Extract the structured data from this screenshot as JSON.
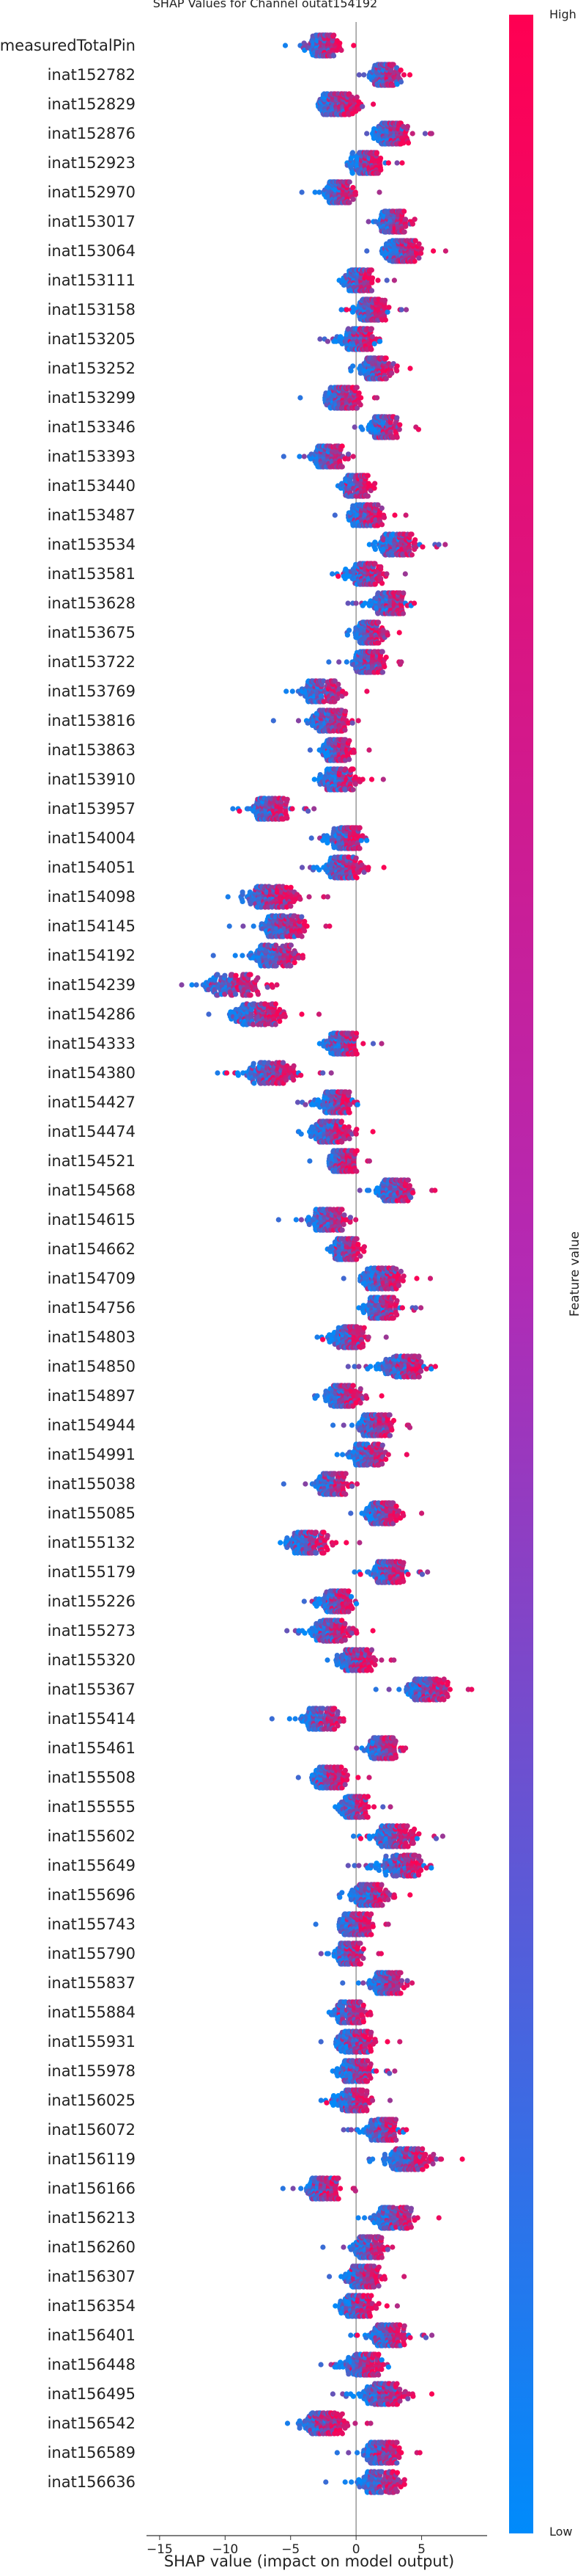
{
  "chart_data": {
    "type": "scatter",
    "subtype": "shap-beeswarm",
    "title": "SHAP Values for Channel outat154192",
    "xlabel": "SHAP value (impact on model output)",
    "xlim": [
      -16,
      10
    ],
    "xticks": [
      -15,
      -10,
      -5,
      0,
      5
    ],
    "xtick_labels": [
      "−15",
      "−10",
      "−5",
      "0",
      "5"
    ],
    "colorbar": {
      "label": "Feature value",
      "high_label": "High",
      "low_label": "Low",
      "high_color": "#ff0052",
      "low_color": "#008bfb"
    },
    "features": [
      {
        "name": "measuredTotalPin",
        "center": -2.5,
        "spread": 1.6,
        "corr": 1
      },
      {
        "name": "inat152782",
        "center": 2.2,
        "spread": 1.5,
        "corr": 1
      },
      {
        "name": "inat152829",
        "center": -1.5,
        "spread": 2.0,
        "corr": 1
      },
      {
        "name": "inat152876",
        "center": 2.8,
        "spread": 1.8,
        "corr": 1
      },
      {
        "name": "inat152923",
        "center": 0.8,
        "spread": 1.5,
        "corr": 1
      },
      {
        "name": "inat152970",
        "center": -1.2,
        "spread": 1.5,
        "corr": 1
      },
      {
        "name": "inat153017",
        "center": 2.8,
        "spread": 1.7,
        "corr": 1
      },
      {
        "name": "inat153064",
        "center": 3.5,
        "spread": 2.0,
        "corr": 1
      },
      {
        "name": "inat153111",
        "center": 0.3,
        "spread": 1.6,
        "corr": 1
      },
      {
        "name": "inat153158",
        "center": 1.2,
        "spread": 1.6,
        "corr": 1
      },
      {
        "name": "inat153205",
        "center": 0.2,
        "spread": 1.8,
        "corr": 1
      },
      {
        "name": "inat153252",
        "center": 1.5,
        "spread": 1.6,
        "corr": 1
      },
      {
        "name": "inat153299",
        "center": -1.0,
        "spread": 1.8,
        "corr": 1
      },
      {
        "name": "inat153346",
        "center": 2.2,
        "spread": 1.7,
        "corr": 1
      },
      {
        "name": "inat153393",
        "center": -2.0,
        "spread": 1.8,
        "corr": 1
      },
      {
        "name": "inat153440",
        "center": 0.0,
        "spread": 1.6,
        "corr": 1
      },
      {
        "name": "inat153487",
        "center": 0.8,
        "spread": 1.8,
        "corr": 1
      },
      {
        "name": "inat153534",
        "center": 3.2,
        "spread": 2.2,
        "corr": 1
      },
      {
        "name": "inat153581",
        "center": 0.8,
        "spread": 1.8,
        "corr": 1
      },
      {
        "name": "inat153628",
        "center": 2.5,
        "spread": 1.9,
        "corr": 1
      },
      {
        "name": "inat153675",
        "center": 1.0,
        "spread": 1.4,
        "corr": 1
      },
      {
        "name": "inat153722",
        "center": 1.0,
        "spread": 1.7,
        "corr": 1
      },
      {
        "name": "inat153769",
        "center": -2.5,
        "spread": 2.2,
        "corr": 1
      },
      {
        "name": "inat153816",
        "center": -2.0,
        "spread": 2.2,
        "corr": 1
      },
      {
        "name": "inat153863",
        "center": -1.5,
        "spread": 1.5,
        "corr": 1
      },
      {
        "name": "inat153910",
        "center": -1.2,
        "spread": 2.0,
        "corr": 1
      },
      {
        "name": "inat153957",
        "center": -6.5,
        "spread": 2.0,
        "corr": 1
      },
      {
        "name": "inat154004",
        "center": -0.8,
        "spread": 1.8,
        "corr": 1
      },
      {
        "name": "inat154051",
        "center": -1.0,
        "spread": 1.9,
        "corr": 1
      },
      {
        "name": "inat154098",
        "center": -6.5,
        "spread": 3.0,
        "corr": 1
      },
      {
        "name": "inat154145",
        "center": -5.5,
        "spread": 2.3,
        "corr": 1
      },
      {
        "name": "inat154192",
        "center": -6.0,
        "spread": 2.5,
        "corr": 1
      },
      {
        "name": "inat154239",
        "center": -9.5,
        "spread": 3.5,
        "corr": 1
      },
      {
        "name": "inat154286",
        "center": -7.5,
        "spread": 2.8,
        "corr": 1
      },
      {
        "name": "inat154333",
        "center": -1.0,
        "spread": 1.8,
        "corr": 1
      },
      {
        "name": "inat154380",
        "center": -6.5,
        "spread": 2.8,
        "corr": 1
      },
      {
        "name": "inat154427",
        "center": -1.5,
        "spread": 1.8,
        "corr": 1
      },
      {
        "name": "inat154474",
        "center": -2.0,
        "spread": 2.0,
        "corr": 1
      },
      {
        "name": "inat154521",
        "center": -1.0,
        "spread": 1.4,
        "corr": 1
      },
      {
        "name": "inat154568",
        "center": 3.0,
        "spread": 2.0,
        "corr": 1
      },
      {
        "name": "inat154615",
        "center": -2.0,
        "spread": 2.0,
        "corr": 1
      },
      {
        "name": "inat154662",
        "center": -0.8,
        "spread": 1.6,
        "corr": 1
      },
      {
        "name": "inat154709",
        "center": 2.0,
        "spread": 2.2,
        "corr": 1
      },
      {
        "name": "inat154756",
        "center": 2.0,
        "spread": 1.8,
        "corr": 1
      },
      {
        "name": "inat154803",
        "center": -0.5,
        "spread": 1.7,
        "corr": 1
      },
      {
        "name": "inat154850",
        "center": 3.5,
        "spread": 2.5,
        "corr": 1
      },
      {
        "name": "inat154897",
        "center": -1.0,
        "spread": 1.8,
        "corr": 1
      },
      {
        "name": "inat154944",
        "center": 1.5,
        "spread": 1.8,
        "corr": 1
      },
      {
        "name": "inat154991",
        "center": 1.0,
        "spread": 1.9,
        "corr": 1
      },
      {
        "name": "inat155038",
        "center": -1.8,
        "spread": 1.9,
        "corr": 1
      },
      {
        "name": "inat155085",
        "center": 2.0,
        "spread": 1.8,
        "corr": 1
      },
      {
        "name": "inat155132",
        "center": -3.5,
        "spread": 2.3,
        "corr": 1
      },
      {
        "name": "inat155179",
        "center": 2.5,
        "spread": 1.8,
        "corr": 1
      },
      {
        "name": "inat155226",
        "center": -1.5,
        "spread": 1.7,
        "corr": 1
      },
      {
        "name": "inat155273",
        "center": -2.0,
        "spread": 2.0,
        "corr": 1
      },
      {
        "name": "inat155320",
        "center": 0.0,
        "spread": 2.0,
        "corr": 1
      },
      {
        "name": "inat155367",
        "center": 5.5,
        "spread": 2.2,
        "corr": 1
      },
      {
        "name": "inat155414",
        "center": -2.5,
        "spread": 2.0,
        "corr": 1
      },
      {
        "name": "inat155461",
        "center": 2.0,
        "spread": 1.8,
        "corr": 1
      },
      {
        "name": "inat155508",
        "center": -2.0,
        "spread": 1.8,
        "corr": 1
      },
      {
        "name": "inat155555",
        "center": 0.0,
        "spread": 1.6,
        "corr": 1
      },
      {
        "name": "inat155602",
        "center": 3.0,
        "spread": 2.2,
        "corr": 1
      },
      {
        "name": "inat155649",
        "center": 3.5,
        "spread": 2.5,
        "corr": 1
      },
      {
        "name": "inat155696",
        "center": 1.0,
        "spread": 1.9,
        "corr": 1
      },
      {
        "name": "inat155743",
        "center": 0.0,
        "spread": 1.7,
        "corr": 1
      },
      {
        "name": "inat155790",
        "center": -0.5,
        "spread": 1.6,
        "corr": 1
      },
      {
        "name": "inat155837",
        "center": 2.5,
        "spread": 1.8,
        "corr": 1
      },
      {
        "name": "inat155884",
        "center": -0.5,
        "spread": 1.8,
        "corr": 1
      },
      {
        "name": "inat155931",
        "center": 0.0,
        "spread": 2.0,
        "corr": 1
      },
      {
        "name": "inat155978",
        "center": 0.0,
        "spread": 1.8,
        "corr": 1
      },
      {
        "name": "inat156025",
        "center": -0.2,
        "spread": 1.7,
        "corr": 1
      },
      {
        "name": "inat156072",
        "center": 2.0,
        "spread": 1.8,
        "corr": 1
      },
      {
        "name": "inat156119",
        "center": 4.0,
        "spread": 2.5,
        "corr": 1
      },
      {
        "name": "inat156166",
        "center": -2.5,
        "spread": 1.7,
        "corr": 1
      },
      {
        "name": "inat156213",
        "center": 3.0,
        "spread": 2.2,
        "corr": 1
      },
      {
        "name": "inat156260",
        "center": 1.0,
        "spread": 1.8,
        "corr": 1
      },
      {
        "name": "inat156307",
        "center": 0.5,
        "spread": 1.9,
        "corr": 1
      },
      {
        "name": "inat156354",
        "center": 0.2,
        "spread": 1.8,
        "corr": 1
      },
      {
        "name": "inat156401",
        "center": 2.5,
        "spread": 2.0,
        "corr": 1
      },
      {
        "name": "inat156448",
        "center": 0.5,
        "spread": 2.2,
        "corr": 1
      },
      {
        "name": "inat156495",
        "center": 2.0,
        "spread": 2.3,
        "corr": 1
      },
      {
        "name": "inat156542",
        "center": -2.5,
        "spread": 2.5,
        "corr": 1
      },
      {
        "name": "inat156589",
        "center": 2.0,
        "spread": 1.9,
        "corr": 1
      },
      {
        "name": "inat156636",
        "center": 2.0,
        "spread": 2.2,
        "corr": 1
      }
    ]
  }
}
